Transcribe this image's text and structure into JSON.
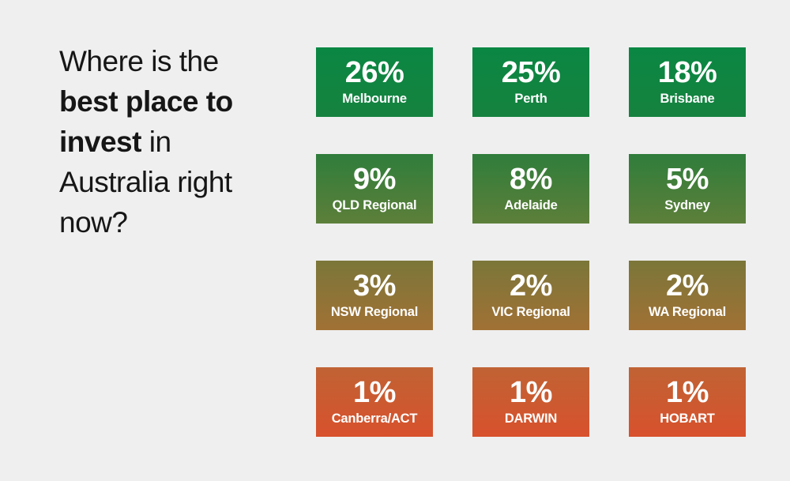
{
  "page": {
    "background_color": "#efefef",
    "text_color": "#161616"
  },
  "question": {
    "segment_pre": "Where is the ",
    "segment_bold": "best place to invest",
    "segment_post": " in Australia right now?"
  },
  "tiles": [
    {
      "value": "26%",
      "label": "Melbourne",
      "color_top": "#0a8743",
      "color_bottom": "#16823f"
    },
    {
      "value": "25%",
      "label": "Perth",
      "color_top": "#0a8743",
      "color_bottom": "#16823f"
    },
    {
      "value": "18%",
      "label": "Brisbane",
      "color_top": "#0a8743",
      "color_bottom": "#16823f"
    },
    {
      "value": "9%",
      "label": "QLD Regional",
      "color_top": "#2f7d3b",
      "color_bottom": "#5d7f3a"
    },
    {
      "value": "8%",
      "label": "Adelaide",
      "color_top": "#2f7d3b",
      "color_bottom": "#5d7f3a"
    },
    {
      "value": "5%",
      "label": "Sydney",
      "color_top": "#2f7d3b",
      "color_bottom": "#5d7f3a"
    },
    {
      "value": "3%",
      "label": "NSW Regional",
      "color_top": "#7b7639",
      "color_bottom": "#a17135"
    },
    {
      "value": "2%",
      "label": "VIC Regional",
      "color_top": "#7b7639",
      "color_bottom": "#a17135"
    },
    {
      "value": "2%",
      "label": "WA Regional",
      "color_top": "#7b7639",
      "color_bottom": "#a17135"
    },
    {
      "value": "1%",
      "label": "Canberra/ACT",
      "color_top": "#c06334",
      "color_bottom": "#d8512d"
    },
    {
      "value": "1%",
      "label": "DARWIN",
      "color_top": "#c06334",
      "color_bottom": "#d8512d"
    },
    {
      "value": "1%",
      "label": "HOBART",
      "color_top": "#c06334",
      "color_bottom": "#d8512d"
    }
  ],
  "chart_data": {
    "type": "heatmap",
    "title": "Where is the best place to invest in Australia right now?",
    "categories": [
      "Melbourne",
      "Perth",
      "Brisbane",
      "QLD Regional",
      "Adelaide",
      "Sydney",
      "NSW Regional",
      "VIC Regional",
      "WA Regional",
      "Canberra/ACT",
      "DARWIN",
      "HOBART"
    ],
    "values": [
      26,
      25,
      18,
      9,
      8,
      5,
      3,
      2,
      2,
      1,
      1,
      1
    ],
    "unit": "%",
    "layout": "4 rows x 3 columns of tiles, ordered high to low, color scale green (high) through olive and brown to orange-red (low)",
    "color_scale": [
      "#0f8441",
      "#46803a",
      "#8e7437",
      "#cc5a30"
    ]
  }
}
